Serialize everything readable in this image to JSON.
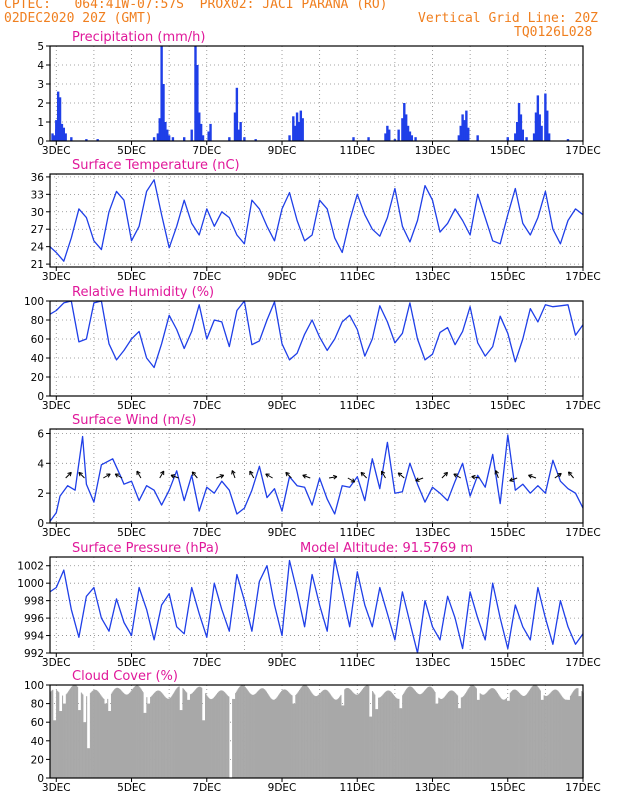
{
  "header": {
    "line1_left": "CPTEC:   064:41W-07:57S  PROX02: JACI PARANA (RO)",
    "line2_left": "02DEC2020 20Z (GMT)",
    "line2_right": "Vertical Grid Line: 20Z",
    "line3_right": "TQ0126L028"
  },
  "colors": {
    "header": "#f07f1f",
    "title": "#e0189a",
    "line": "#1f3fe8",
    "bar": "#1f3fe8",
    "cloud": "#a8a8a8",
    "arrow": "#000000"
  },
  "x_ticks": [
    "3DEC",
    "5DEC",
    "7DEC",
    "9DEC",
    "11DEC",
    "13DEC",
    "15DEC",
    "17DEC"
  ],
  "chart_data": [
    {
      "type": "bar",
      "title": "Precipitation (mm/h)",
      "ylim": [
        0,
        5
      ],
      "yticks": [
        "0",
        "1",
        "2",
        "3",
        "4",
        "5"
      ],
      "x_start_day": 2.833,
      "x_end_day": 17.0,
      "bars": [
        [
          2.9,
          0.4
        ],
        [
          3.0,
          1.1
        ],
        [
          3.05,
          2.6
        ],
        [
          3.1,
          2.3
        ],
        [
          3.15,
          0.9
        ],
        [
          3.2,
          0.7
        ],
        [
          3.25,
          0.4
        ],
        [
          3.4,
          0.2
        ],
        [
          3.0,
          0.6
        ],
        [
          2.95,
          0.3
        ],
        [
          3.8,
          0.1
        ],
        [
          4.1,
          0.1
        ],
        [
          5.6,
          0.2
        ],
        [
          5.7,
          0.4
        ],
        [
          5.75,
          1.2
        ],
        [
          5.8,
          5.0
        ],
        [
          5.85,
          3.0
        ],
        [
          5.9,
          1.0
        ],
        [
          5.95,
          0.6
        ],
        [
          6.0,
          0.3
        ],
        [
          6.1,
          0.2
        ],
        [
          6.4,
          0.2
        ],
        [
          6.6,
          0.6
        ],
        [
          6.7,
          5.0
        ],
        [
          6.75,
          4.0
        ],
        [
          6.8,
          1.5
        ],
        [
          6.85,
          0.9
        ],
        [
          6.9,
          0.3
        ],
        [
          7.05,
          0.5
        ],
        [
          7.1,
          0.9
        ],
        [
          7.6,
          0.2
        ],
        [
          7.75,
          1.5
        ],
        [
          7.8,
          2.8
        ],
        [
          7.85,
          0.6
        ],
        [
          7.9,
          1.0
        ],
        [
          8.0,
          0.2
        ],
        [
          8.3,
          0.1
        ],
        [
          9.2,
          0.3
        ],
        [
          9.3,
          1.3
        ],
        [
          9.35,
          0.8
        ],
        [
          9.4,
          1.5
        ],
        [
          9.45,
          1.0
        ],
        [
          9.5,
          1.6
        ],
        [
          9.55,
          1.2
        ],
        [
          10.9,
          0.2
        ],
        [
          11.3,
          0.2
        ],
        [
          11.75,
          0.4
        ],
        [
          11.8,
          0.8
        ],
        [
          11.85,
          0.6
        ],
        [
          12.0,
          0.1
        ],
        [
          12.1,
          0.6
        ],
        [
          12.2,
          1.2
        ],
        [
          12.25,
          2.0
        ],
        [
          12.3,
          1.4
        ],
        [
          12.35,
          0.8
        ],
        [
          12.4,
          0.5
        ],
        [
          12.45,
          0.3
        ],
        [
          12.55,
          0.2
        ],
        [
          13.7,
          0.3
        ],
        [
          13.75,
          0.8
        ],
        [
          13.8,
          1.4
        ],
        [
          13.85,
          1.1
        ],
        [
          13.9,
          1.6
        ],
        [
          13.95,
          0.7
        ],
        [
          14.2,
          0.3
        ],
        [
          15.0,
          0.2
        ],
        [
          15.2,
          0.4
        ],
        [
          15.25,
          1.0
        ],
        [
          15.3,
          2.0
        ],
        [
          15.35,
          1.4
        ],
        [
          15.4,
          0.6
        ],
        [
          15.5,
          0.2
        ],
        [
          15.7,
          0.4
        ],
        [
          15.75,
          1.5
        ],
        [
          15.8,
          2.4
        ],
        [
          15.85,
          1.4
        ],
        [
          15.9,
          0.8
        ],
        [
          16.0,
          2.5
        ],
        [
          16.05,
          1.6
        ],
        [
          16.1,
          0.4
        ],
        [
          16.6,
          0.1
        ]
      ]
    },
    {
      "type": "line",
      "title": "Surface Temperature (nC)",
      "ylim": [
        20.5,
        36.5
      ],
      "yticks": [
        "21",
        "24",
        "27",
        "30",
        "33",
        "36"
      ],
      "x": [
        2.83,
        3.0,
        3.2,
        3.4,
        3.6,
        3.8,
        4.0,
        4.2,
        4.4,
        4.6,
        4.8,
        5.0,
        5.2,
        5.4,
        5.6,
        5.8,
        6.0,
        6.2,
        6.4,
        6.6,
        6.8,
        7.0,
        7.2,
        7.4,
        7.6,
        7.8,
        8.0,
        8.2,
        8.4,
        8.6,
        8.8,
        9.0,
        9.2,
        9.4,
        9.6,
        9.8,
        10.0,
        10.2,
        10.4,
        10.6,
        10.8,
        11.0,
        11.2,
        11.4,
        11.6,
        11.8,
        12.0,
        12.2,
        12.4,
        12.6,
        12.8,
        13.0,
        13.2,
        13.4,
        13.6,
        13.8,
        14.0,
        14.2,
        14.4,
        14.6,
        14.8,
        15.0,
        15.2,
        15.4,
        15.6,
        15.8,
        16.0,
        16.2,
        16.4,
        16.6,
        16.8,
        17.0
      ],
      "y": [
        24.0,
        23.0,
        21.5,
        25.5,
        30.5,
        29.0,
        25.0,
        23.5,
        30.0,
        33.5,
        32.0,
        25.0,
        27.5,
        33.5,
        35.5,
        29.5,
        23.8,
        27.5,
        32.0,
        28.0,
        26.0,
        30.5,
        27.5,
        30.0,
        29.0,
        26.0,
        24.5,
        32.0,
        30.5,
        27.5,
        25.0,
        30.5,
        33.3,
        28.5,
        25.0,
        26.0,
        32.0,
        30.5,
        25.5,
        23.0,
        28.5,
        33.0,
        29.5,
        27.0,
        25.8,
        29.0,
        34.0,
        27.5,
        24.8,
        28.5,
        34.5,
        32.0,
        26.5,
        28.0,
        30.5,
        28.5,
        26.0,
        33.0,
        29.0,
        25.0,
        24.5,
        29.5,
        34.0,
        28.0,
        26.0,
        29.0,
        33.5,
        27.0,
        24.5,
        28.5,
        30.5,
        29.5
      ]
    },
    {
      "type": "line",
      "title": "Relative Humidity (%)",
      "ylim": [
        0,
        100
      ],
      "yticks": [
        "0",
        "20",
        "40",
        "60",
        "80",
        "100"
      ],
      "x": [
        2.83,
        3.0,
        3.2,
        3.4,
        3.6,
        3.8,
        4.0,
        4.2,
        4.4,
        4.6,
        4.8,
        5.0,
        5.2,
        5.4,
        5.6,
        5.8,
        6.0,
        6.2,
        6.4,
        6.6,
        6.8,
        7.0,
        7.2,
        7.4,
        7.6,
        7.8,
        8.0,
        8.2,
        8.4,
        8.6,
        8.8,
        9.0,
        9.2,
        9.4,
        9.6,
        9.8,
        10.0,
        10.2,
        10.4,
        10.6,
        10.8,
        11.0,
        11.2,
        11.4,
        11.6,
        11.8,
        12.0,
        12.2,
        12.4,
        12.6,
        12.8,
        13.0,
        13.2,
        13.4,
        13.6,
        13.8,
        14.0,
        14.2,
        14.4,
        14.6,
        14.8,
        15.0,
        15.2,
        15.4,
        15.6,
        15.8,
        16.0,
        16.2,
        16.4,
        16.6,
        16.8,
        17.0
      ],
      "y": [
        86,
        90,
        98,
        100,
        57,
        60,
        98,
        100,
        55,
        38,
        48,
        60,
        68,
        40,
        30,
        55,
        85,
        70,
        50,
        68,
        96,
        60,
        80,
        78,
        52,
        90,
        100,
        54,
        58,
        80,
        99,
        55,
        38,
        45,
        65,
        80,
        62,
        48,
        60,
        78,
        85,
        70,
        42,
        60,
        95,
        78,
        56,
        66,
        98,
        60,
        38,
        44,
        67,
        72,
        54,
        68,
        94,
        56,
        42,
        52,
        84,
        66,
        36,
        60,
        92,
        78,
        96,
        94,
        95,
        96,
        64,
        75
      ]
    },
    {
      "type": "line",
      "title": "Surface Wind (m/s)",
      "ylim": [
        0,
        6.3
      ],
      "yticks": [
        "0",
        "2",
        "4",
        "6"
      ],
      "x": [
        2.83,
        3.0,
        3.1,
        3.3,
        3.5,
        3.7,
        3.8,
        4.0,
        4.2,
        4.5,
        4.7,
        4.8,
        5.0,
        5.2,
        5.4,
        5.6,
        5.8,
        6.0,
        6.2,
        6.4,
        6.6,
        6.8,
        7.0,
        7.2,
        7.4,
        7.6,
        7.8,
        8.0,
        8.2,
        8.4,
        8.6,
        8.8,
        9.0,
        9.2,
        9.4,
        9.6,
        9.8,
        10.0,
        10.2,
        10.4,
        10.6,
        10.8,
        11.0,
        11.2,
        11.4,
        11.6,
        11.8,
        12.0,
        12.2,
        12.4,
        12.6,
        12.8,
        13.0,
        13.2,
        13.4,
        13.6,
        13.8,
        14.0,
        14.2,
        14.4,
        14.6,
        14.8,
        15.0,
        15.2,
        15.4,
        15.6,
        15.8,
        16.0,
        16.2,
        16.4,
        16.6,
        16.8,
        17.0
      ],
      "y": [
        0.1,
        0.7,
        1.8,
        2.5,
        2.2,
        5.8,
        2.6,
        1.4,
        3.9,
        4.3,
        3.2,
        2.6,
        2.8,
        1.5,
        2.5,
        2.2,
        1.2,
        2.2,
        3.5,
        1.5,
        3.2,
        0.8,
        2.4,
        2.0,
        2.8,
        2.2,
        0.6,
        1.0,
        2.2,
        3.8,
        1.7,
        2.3,
        0.8,
        3.1,
        2.5,
        2.4,
        1.2,
        3.0,
        1.6,
        0.6,
        2.5,
        2.4,
        3.1,
        1.5,
        4.3,
        2.3,
        5.4,
        2.0,
        2.1,
        4.0,
        2.6,
        1.4,
        2.4,
        2.0,
        1.5,
        2.8,
        4.0,
        1.8,
        3.2,
        2.4,
        4.6,
        1.3,
        5.9,
        2.2,
        2.6,
        2.0,
        2.5,
        2.0,
        4.2,
        2.8,
        2.3,
        2.0,
        1.0
      ],
      "arrows_x": [
        3.25,
        3.75,
        4.25,
        4.75,
        5.25,
        5.75,
        6.25,
        6.75,
        7.25,
        7.75,
        8.25,
        8.75,
        9.25,
        9.75,
        10.25,
        10.75,
        11.25,
        11.75,
        12.25,
        12.75,
        13.25,
        13.75,
        14.25,
        14.75,
        15.25,
        15.75,
        16.25,
        16.75
      ],
      "arrows_dir": [
        -45,
        225,
        -30,
        210,
        240,
        -60,
        200,
        230,
        -20,
        250,
        240,
        210,
        225,
        200,
        -10,
        30,
        225,
        240,
        220,
        160,
        -45,
        210,
        190,
        250,
        160,
        200,
        -35,
        230
      ]
    },
    {
      "type": "line",
      "title": "Surface Pressure (hPa)",
      "annotation": "Model Altitude: 91.5769 m",
      "ylim": [
        992,
        1003
      ],
      "yticks": [
        "992",
        "994",
        "996",
        "998",
        "1000",
        "1002"
      ],
      "x": [
        2.83,
        3.0,
        3.2,
        3.4,
        3.6,
        3.8,
        4.0,
        4.2,
        4.4,
        4.6,
        4.8,
        5.0,
        5.2,
        5.4,
        5.6,
        5.8,
        6.0,
        6.2,
        6.4,
        6.6,
        6.8,
        7.0,
        7.2,
        7.4,
        7.6,
        7.8,
        8.0,
        8.2,
        8.4,
        8.6,
        8.8,
        9.0,
        9.2,
        9.4,
        9.6,
        9.8,
        10.0,
        10.2,
        10.4,
        10.6,
        10.8,
        11.0,
        11.2,
        11.4,
        11.6,
        11.8,
        12.0,
        12.2,
        12.4,
        12.6,
        12.8,
        13.0,
        13.2,
        13.4,
        13.6,
        13.8,
        14.0,
        14.2,
        14.4,
        14.6,
        14.8,
        15.0,
        15.2,
        15.4,
        15.6,
        15.8,
        16.0,
        16.2,
        16.4,
        16.6,
        16.8,
        17.0
      ],
      "y": [
        999.0,
        999.5,
        1001.5,
        997.0,
        993.8,
        998.5,
        999.5,
        996.0,
        994.5,
        998.2,
        995.5,
        994.0,
        999.5,
        997.0,
        993.5,
        997.5,
        998.8,
        995.0,
        994.2,
        999.5,
        996.5,
        993.8,
        1000.0,
        997.0,
        994.5,
        1001.0,
        998.0,
        994.5,
        1000.2,
        1002.0,
        997.5,
        994.0,
        1002.6,
        999.0,
        995.0,
        1001.0,
        997.5,
        994.5,
        1002.8,
        999.0,
        995.0,
        1001.3,
        997.5,
        995.0,
        999.5,
        996.5,
        993.5,
        999.0,
        995.5,
        992.0,
        998.0,
        995.0,
        993.5,
        998.5,
        996.0,
        992.5,
        999.0,
        996.0,
        993.5,
        1000.0,
        996.0,
        992.5,
        997.5,
        995.0,
        993.5,
        999.5,
        996.0,
        993.0,
        998.0,
        995.0,
        993.0,
        994.2
      ]
    },
    {
      "type": "bar",
      "title": "Cloud Cover (%)",
      "ylim": [
        0,
        100
      ],
      "yticks": [
        "0",
        "20",
        "40",
        "60",
        "80",
        "100"
      ],
      "note": "Nearly continuous overcast near 90-99% with short dips; a gap near 7.6 DEC.",
      "base_level": 92,
      "dips": [
        [
          2.95,
          62
        ],
        [
          3.1,
          72
        ],
        [
          3.2,
          80
        ],
        [
          3.6,
          73
        ],
        [
          3.75,
          60
        ],
        [
          3.85,
          32
        ],
        [
          4.3,
          80
        ],
        [
          4.4,
          72
        ],
        [
          5.35,
          70
        ],
        [
          5.45,
          80
        ],
        [
          6.3,
          73
        ],
        [
          6.5,
          84
        ],
        [
          6.9,
          62
        ],
        [
          7.62,
          0
        ],
        [
          7.7,
          85
        ],
        [
          9.3,
          80
        ],
        [
          10.6,
          78
        ],
        [
          11.35,
          66
        ],
        [
          11.5,
          74
        ],
        [
          12.15,
          75
        ],
        [
          13.1,
          80
        ],
        [
          13.7,
          75
        ],
        [
          14.2,
          84
        ],
        [
          15.0,
          83
        ],
        [
          15.9,
          84
        ],
        [
          16.6,
          84
        ],
        [
          16.9,
          88
        ]
      ]
    }
  ]
}
